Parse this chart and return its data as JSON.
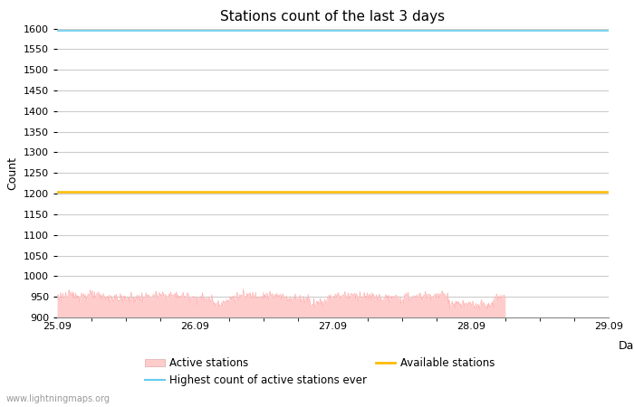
{
  "title": "Stations count of the last 3 days",
  "xlabel": "Day",
  "ylabel": "Count",
  "ylim": [
    900,
    1600
  ],
  "xlim": [
    0,
    96
  ],
  "yticks": [
    900,
    950,
    1000,
    1050,
    1100,
    1150,
    1200,
    1250,
    1300,
    1350,
    1400,
    1450,
    1500,
    1550,
    1600
  ],
  "xtick_positions": [
    0,
    24,
    48,
    72,
    96
  ],
  "xtick_labels": [
    "25.09",
    "26.09",
    "27.09",
    "28.09",
    "29.09"
  ],
  "highest_ever_value": 1595,
  "highest_ever_color": "#66ccee",
  "available_stations_value": 1205,
  "available_stations_color": "#ffbb00",
  "active_fill_color": "#ffcccc",
  "active_line_color": "#ffaaaa",
  "active_baseline": 900,
  "data_end_x": 78,
  "watermark": "www.lightningmaps.org",
  "bg_color": "#ffffff",
  "grid_color": "#cccccc",
  "title_fontsize": 11,
  "label_fontsize": 9,
  "tick_fontsize": 8
}
